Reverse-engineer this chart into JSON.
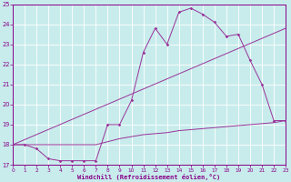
{
  "xlabel": "Windchill (Refroidissement éolien,°C)",
  "background_color": "#c8ecec",
  "grid_color": "#ffffff",
  "line_color": "#993399",
  "xlim": [
    0,
    23
  ],
  "ylim": [
    17,
    25
  ],
  "xticks": [
    0,
    1,
    2,
    3,
    4,
    5,
    6,
    7,
    8,
    9,
    10,
    11,
    12,
    13,
    14,
    15,
    16,
    17,
    18,
    19,
    20,
    21,
    22,
    23
  ],
  "yticks": [
    17,
    18,
    19,
    20,
    21,
    22,
    23,
    24,
    25
  ],
  "line1_x": [
    0,
    1,
    2,
    3,
    4,
    5,
    6,
    7,
    8,
    9,
    10,
    11,
    12,
    13,
    14,
    15,
    16,
    17,
    18,
    19,
    20,
    21,
    22,
    23
  ],
  "line1_y": [
    18.0,
    18.0,
    17.8,
    17.3,
    17.2,
    17.2,
    17.2,
    17.2,
    19.0,
    19.0,
    20.2,
    22.6,
    23.8,
    23.0,
    24.6,
    24.8,
    24.5,
    24.1,
    23.4,
    23.5,
    22.2,
    21.0,
    19.2,
    19.2
  ],
  "line2_x": [
    0,
    1,
    2,
    3,
    4,
    5,
    6,
    7,
    8,
    9,
    10,
    11,
    12,
    13,
    14,
    15,
    16,
    17,
    18,
    19,
    20,
    21,
    22,
    23
  ],
  "line2_y": [
    18.0,
    18.0,
    18.0,
    18.0,
    18.0,
    18.0,
    18.0,
    18.0,
    18.15,
    18.3,
    18.4,
    18.5,
    18.55,
    18.6,
    18.7,
    18.75,
    18.8,
    18.85,
    18.9,
    18.95,
    19.0,
    19.05,
    19.1,
    19.2
  ],
  "line3_x": [
    0,
    23
  ],
  "line3_y": [
    18.0,
    23.8
  ]
}
